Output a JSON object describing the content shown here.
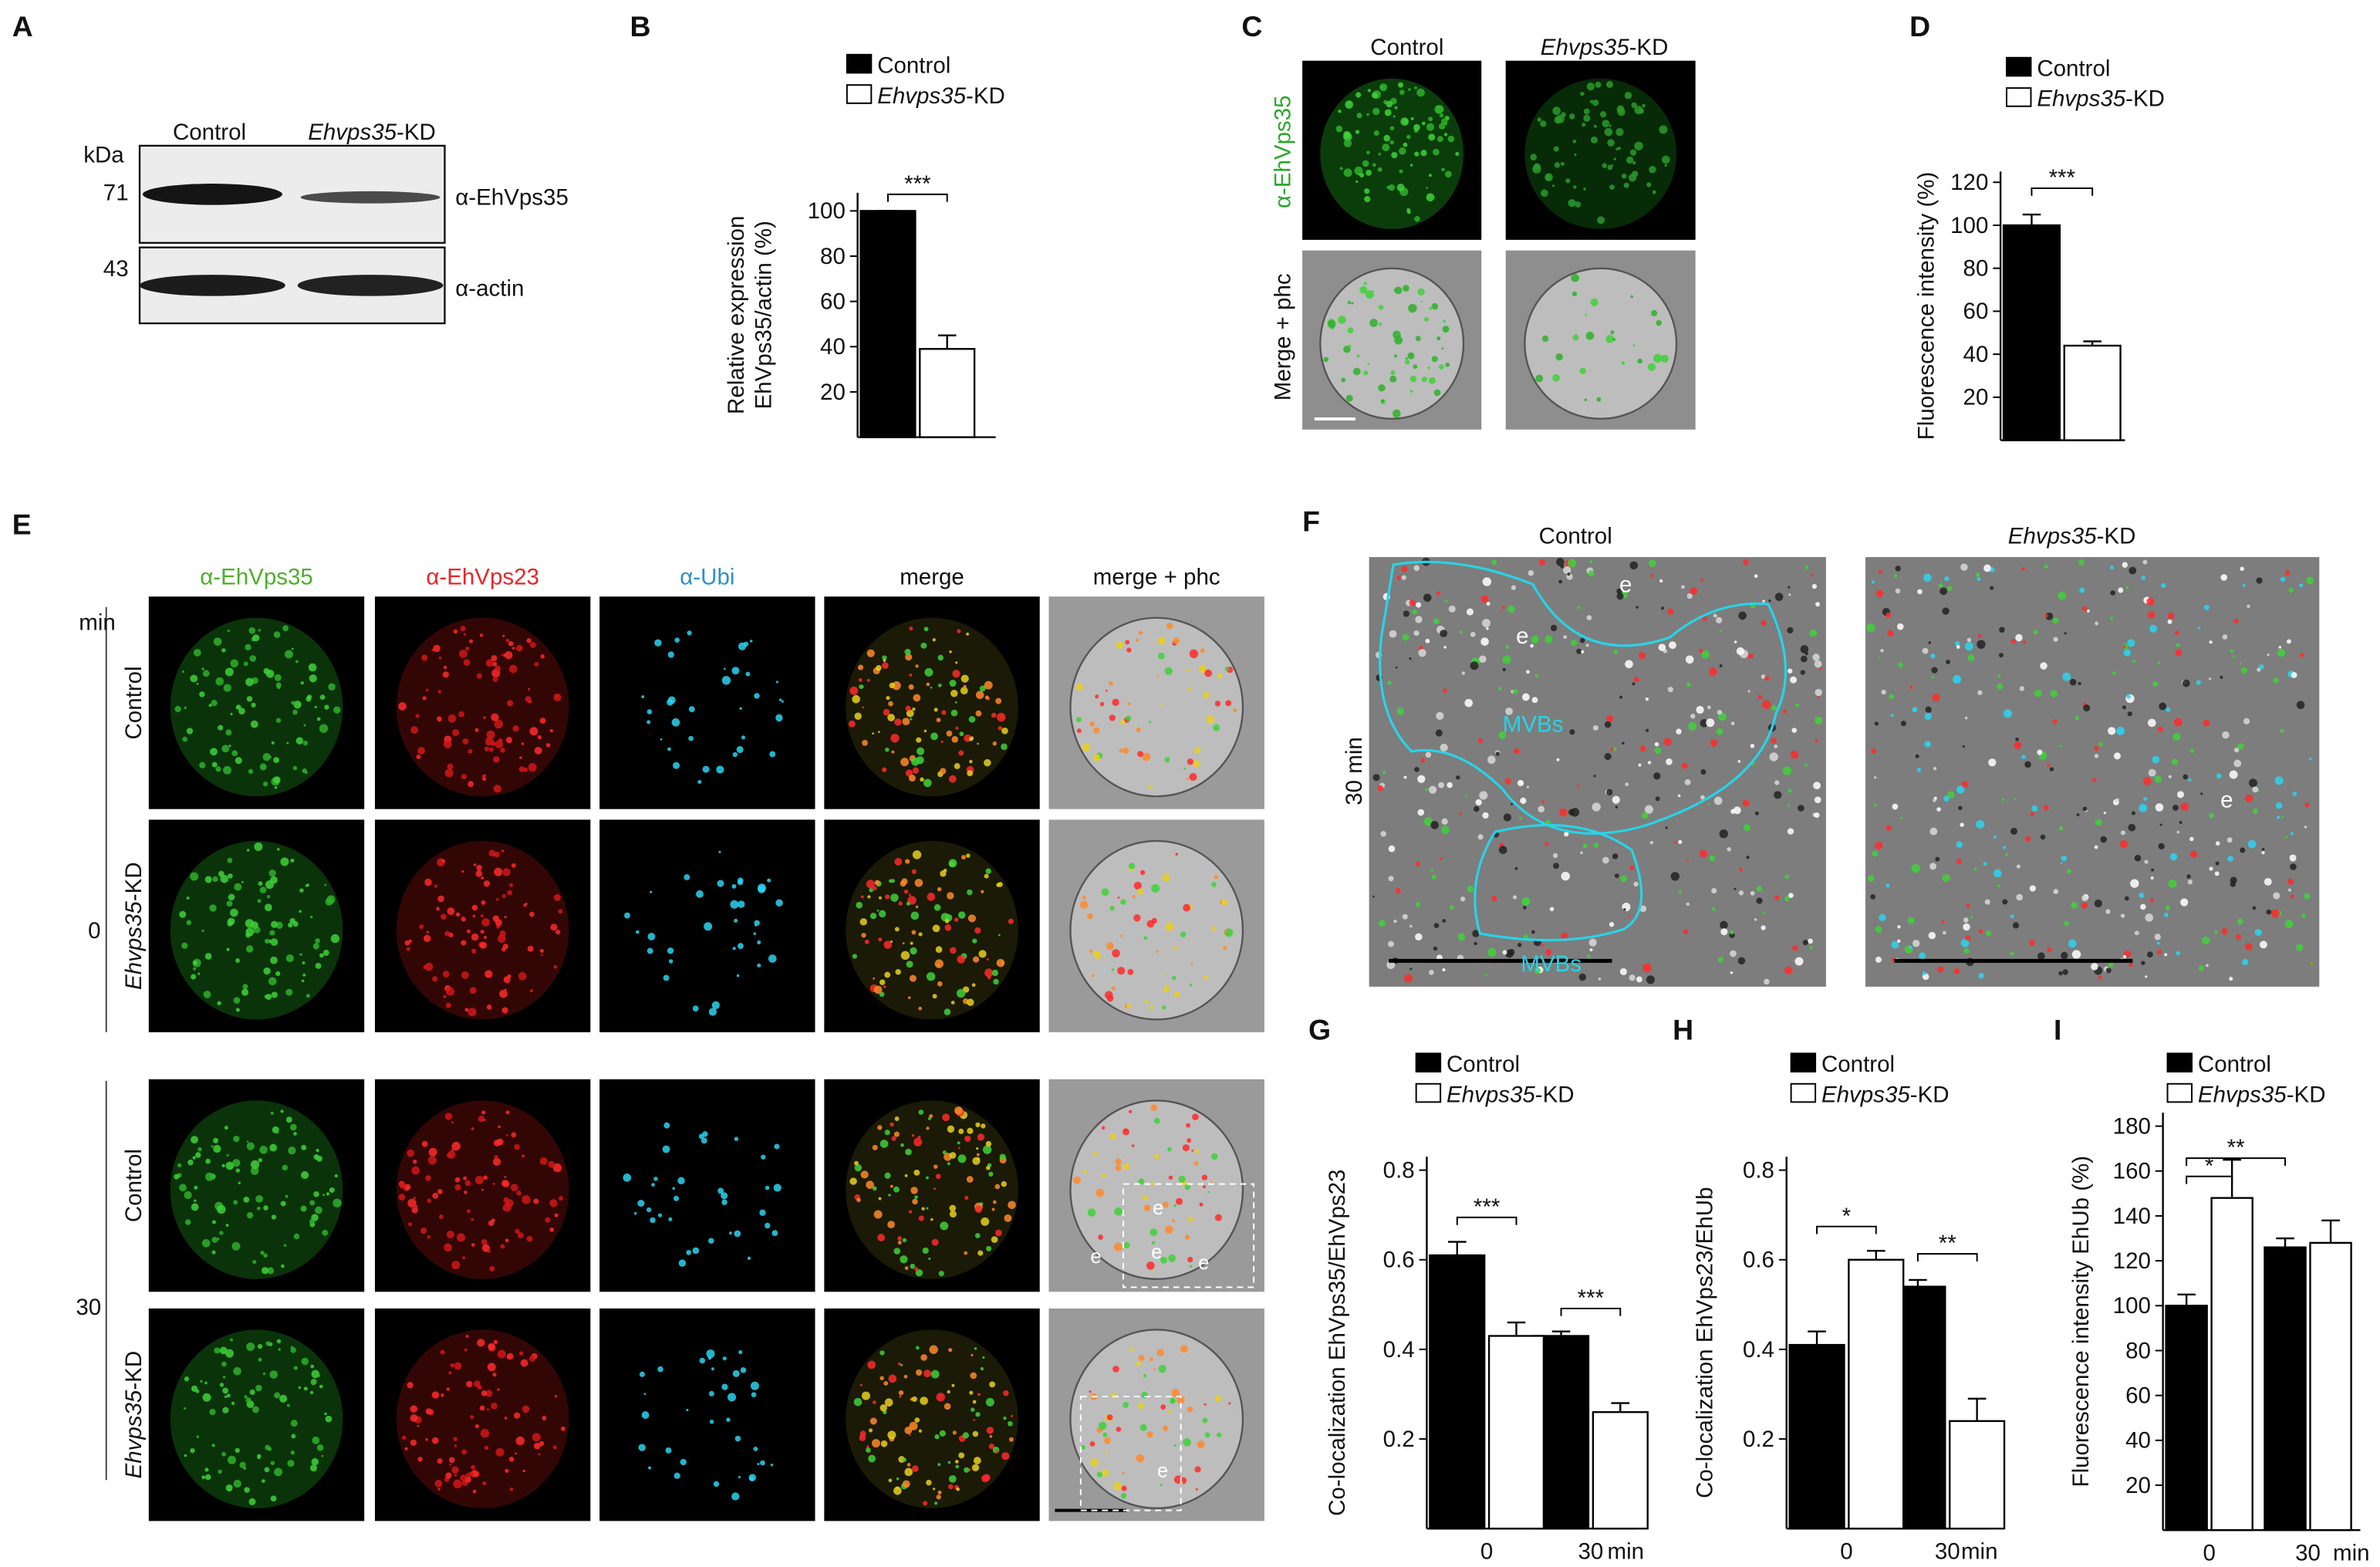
{
  "chart_data": [
    {
      "type": "bar",
      "panel_label": "B",
      "ylabel": [
        "Relative expression",
        "EhVps35/actin (%)"
      ],
      "series": [
        {
          "name": "Control",
          "color": "#000000",
          "values": [
            100
          ],
          "errors": [
            0
          ]
        },
        {
          "name": "Ehvps35-KD",
          "color": "#ffffff",
          "values": [
            39
          ],
          "errors": [
            6
          ]
        }
      ],
      "ylim": [
        0,
        108
      ],
      "yticks": [
        20,
        40,
        60,
        80,
        100
      ],
      "annotations": [
        "***"
      ]
    },
    {
      "type": "bar",
      "panel_label": "D",
      "ylabel": [
        "Fluorescence intensity (%)"
      ],
      "series": [
        {
          "name": "Control",
          "color": "#000000",
          "values": [
            100
          ],
          "errors": [
            5
          ]
        },
        {
          "name": "Ehvps35-KD",
          "color": "#ffffff",
          "values": [
            44
          ],
          "errors": [
            2
          ]
        }
      ],
      "ylim": [
        0,
        125
      ],
      "yticks": [
        20,
        40,
        60,
        80,
        100,
        120
      ],
      "annotations": [
        "***"
      ]
    },
    {
      "type": "bar",
      "panel_label": "G",
      "ylabel": [
        "Co-localization EhVps35/EhVps23"
      ],
      "xlabel": "min",
      "categories": [
        "0",
        "30"
      ],
      "series": [
        {
          "name": "Control",
          "color": "#000000",
          "values": [
            0.61,
            0.43
          ],
          "errors": [
            0.03,
            0.01
          ]
        },
        {
          "name": "Ehvps35-KD",
          "color": "#ffffff",
          "values": [
            0.43,
            0.26
          ],
          "errors": [
            0.03,
            0.02
          ]
        }
      ],
      "ylim": [
        0,
        0.83
      ],
      "yticks": [
        0.2,
        0.4,
        0.6,
        0.8
      ],
      "annotations": [
        "***",
        "***"
      ]
    },
    {
      "type": "bar",
      "panel_label": "H",
      "ylabel": [
        "Co-localization EhVps23/EhUb"
      ],
      "xlabel": "min",
      "categories": [
        "0",
        "30"
      ],
      "series": [
        {
          "name": "Control",
          "color": "#000000",
          "values": [
            0.41,
            0.54
          ],
          "errors": [
            0.03,
            0.015
          ]
        },
        {
          "name": "Ehvps35-KD",
          "color": "#ffffff",
          "values": [
            0.6,
            0.24
          ],
          "errors": [
            0.02,
            0.05
          ]
        }
      ],
      "ylim": [
        0,
        0.83
      ],
      "yticks": [
        0.2,
        0.4,
        0.6,
        0.8
      ],
      "annotations": [
        "*",
        "**"
      ]
    },
    {
      "type": "bar",
      "panel_label": "I",
      "ylabel": [
        "Fluorescence intensity EhUb (%)"
      ],
      "xlabel": "min",
      "categories": [
        "0",
        "30"
      ],
      "series": [
        {
          "name": "Control",
          "color": "#000000",
          "values": [
            100,
            126
          ],
          "errors": [
            5,
            4
          ]
        },
        {
          "name": "Ehvps35-KD",
          "color": "#ffffff",
          "values": [
            148,
            128
          ],
          "errors": [
            17,
            10
          ]
        }
      ],
      "ylim": [
        0,
        186
      ],
      "yticks": [
        20,
        40,
        60,
        80,
        100,
        120,
        140,
        160,
        180
      ],
      "annotations": [
        "*",
        "**"
      ]
    }
  ],
  "panel_A": {
    "label": "A",
    "unit": "kDa",
    "markers": [
      71,
      43
    ],
    "lanes": [
      "Control",
      "Ehvps35-KD"
    ],
    "antibodies": [
      "α-EhVps35",
      "α-actin"
    ]
  },
  "panel_C": {
    "label": "C",
    "columns": [
      "Control",
      "Ehvps35-KD"
    ],
    "rows": [
      {
        "text": "α-EhVps35",
        "color": "#2aa82a"
      },
      {
        "text": "Merge + phc",
        "color": "#111111"
      }
    ]
  },
  "panel_E": {
    "label": "E",
    "columns": [
      {
        "text": "α-EhVps35",
        "color": "#4caf2a"
      },
      {
        "text": "α-EhVps23",
        "color": "#e8262a"
      },
      {
        "text": "α-Ubi",
        "color": "#2c8fd0"
      },
      {
        "text": "merge",
        "color": "#111111"
      },
      {
        "text": "merge + phc",
        "color": "#111111"
      }
    ],
    "time_unit": "min",
    "times": [
      0,
      30
    ],
    "rows": [
      "Control",
      "Ehvps35-KD",
      "Control",
      "Ehvps35-KD"
    ],
    "endosome_marks": [
      "e",
      "e",
      "e",
      "e",
      "e"
    ]
  },
  "panel_F": {
    "label": "F",
    "columns": [
      "Control",
      "Ehvps35-KD"
    ],
    "time": "30 min",
    "control_marks": [
      "e",
      "e",
      "MVBs",
      "MVBs"
    ],
    "kd_marks": [
      "e"
    ]
  }
}
